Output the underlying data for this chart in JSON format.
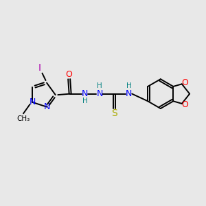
{
  "bg_color": "#e8e8e8",
  "bond_color": "#000000",
  "n_color": "#0000ff",
  "o_color": "#ff0000",
  "s_color": "#aaaa00",
  "i_color": "#aa00aa",
  "teal_color": "#008080",
  "figsize": [
    3.0,
    3.0
  ],
  "dpi": 100,
  "xlim": [
    0,
    10
  ],
  "ylim": [
    0,
    10
  ]
}
